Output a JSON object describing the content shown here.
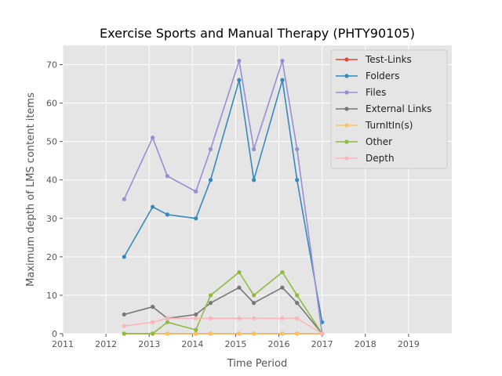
{
  "chart_data": {
    "type": "line",
    "title": "Exercise Sports and Manual Therapy (PHTY90105)",
    "xlabel": "Time Period",
    "ylabel": "Maximum depth of LMS content items",
    "xlim": [
      2011,
      2020
    ],
    "ylim": [
      0,
      75
    ],
    "xticks": [
      2011,
      2012,
      2013,
      2014,
      2015,
      2016,
      2017,
      2018,
      2019
    ],
    "yticks": [
      0,
      10,
      20,
      30,
      40,
      50,
      60,
      70
    ],
    "grid": true,
    "legend_position": "top-right",
    "x": [
      2012.42,
      2013.08,
      2013.42,
      2014.08,
      2014.42,
      2015.08,
      2015.42,
      2016.08,
      2016.42,
      2017.0
    ],
    "series": [
      {
        "name": "Test-Links",
        "color": "#E24A33",
        "values": [
          0,
          0,
          0,
          0,
          0,
          0,
          0,
          0,
          0,
          0
        ]
      },
      {
        "name": "Folders",
        "color": "#348ABD",
        "values": [
          20,
          33,
          31,
          30,
          40,
          66,
          40,
          66,
          40,
          3
        ]
      },
      {
        "name": "Files",
        "color": "#988ED5",
        "values": [
          35,
          51,
          41,
          37,
          48,
          71,
          48,
          71,
          48,
          0
        ]
      },
      {
        "name": "External Links",
        "color": "#777777",
        "values": [
          5,
          7,
          4,
          5,
          8,
          12,
          8,
          12,
          8,
          0
        ]
      },
      {
        "name": "TurnItIn(s)",
        "color": "#FBC15E",
        "values": [
          0,
          0,
          0,
          0,
          0,
          0,
          0,
          0,
          0,
          0
        ]
      },
      {
        "name": "Other",
        "color": "#8EBA42",
        "values": [
          0,
          0,
          3,
          1,
          10,
          16,
          10,
          16,
          10,
          0
        ]
      },
      {
        "name": "Depth",
        "color": "#FFB5B8",
        "values": [
          2,
          3,
          4,
          4,
          4,
          4,
          4,
          4,
          4,
          0
        ]
      }
    ]
  }
}
